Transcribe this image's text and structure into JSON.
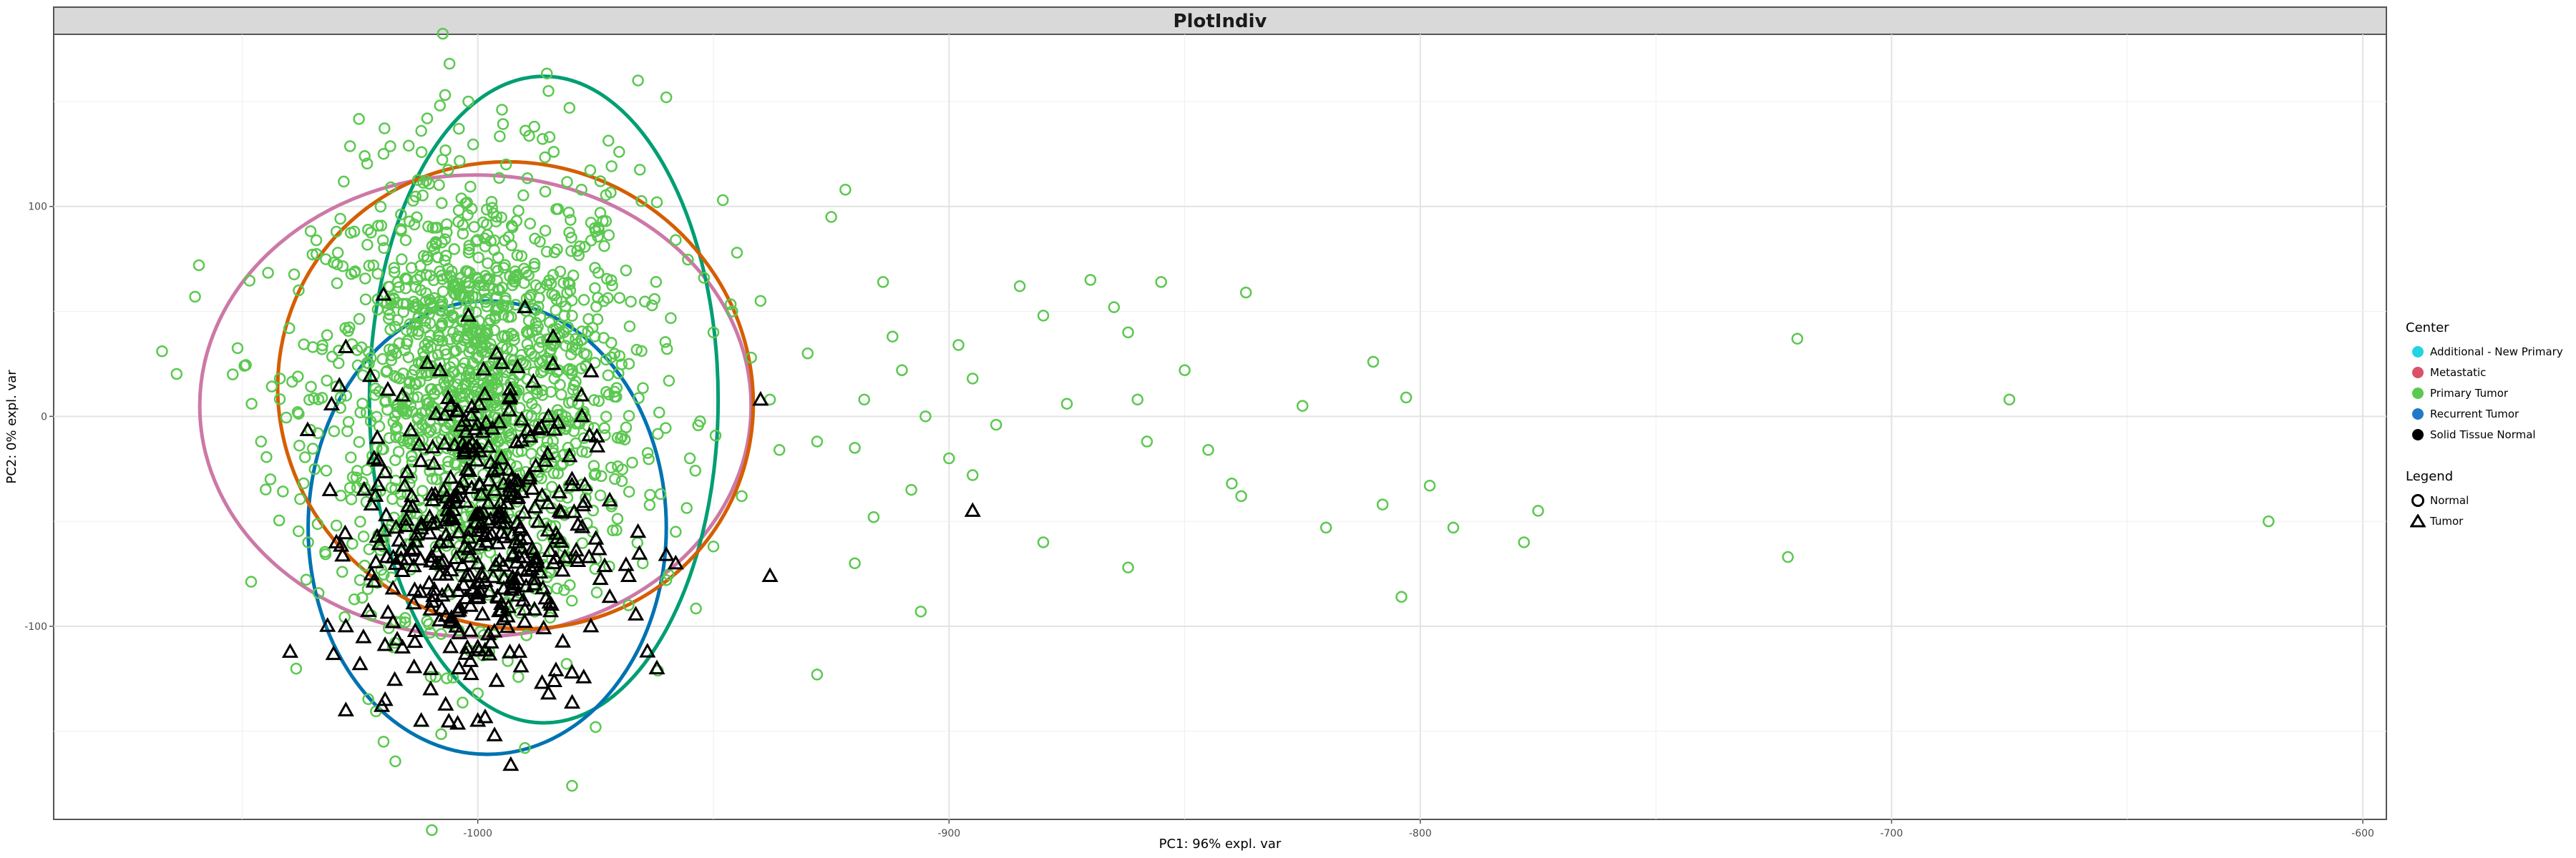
{
  "chart_data": {
    "type": "scatter",
    "title": "PlotIndiv",
    "xlabel": "PC1: 96% expl. var",
    "ylabel": "PC2: 0% expl. var",
    "xlim": [
      -1090,
      -595
    ],
    "ylim": [
      -192,
      182
    ],
    "x_ticks": [
      -1000,
      -900,
      -800,
      -700,
      -600
    ],
    "x_tick_labels": [
      "-1000",
      "-900",
      "-800",
      "-700",
      "-600"
    ],
    "y_ticks": [
      -100,
      0,
      100
    ],
    "y_tick_labels": [
      "-100",
      "0",
      "100"
    ],
    "grid": true,
    "legend_position": "right",
    "color_legend": {
      "title": "Center",
      "entries": [
        {
          "label": "Additional - New Primary",
          "color": "#22d3e0"
        },
        {
          "label": "Metastatic",
          "color": "#d95267"
        },
        {
          "label": "Primary Tumor",
          "color": "#5bc850"
        },
        {
          "label": "Recurrent Tumor",
          "color": "#2079c7"
        },
        {
          "label": "Solid Tissue Normal",
          "color": "#000000"
        }
      ]
    },
    "shape_legend": {
      "title": "Legend",
      "entries": [
        {
          "label": "Normal",
          "shape": "circle"
        },
        {
          "label": "Tumor",
          "shape": "triangle"
        }
      ]
    },
    "ellipses": [
      {
        "group": "Metastatic",
        "color": "#cc79a7",
        "cx": -1000.5,
        "cy": 5,
        "rx": 58.5,
        "ry": 110
      },
      {
        "group": "Primary Tumor",
        "color": "#009e73",
        "cx": -986,
        "cy": 8,
        "rx": 37,
        "ry": 154
      },
      {
        "group": "Recurrent Tumor",
        "color": "#0072b2",
        "cx": -998,
        "cy": -53,
        "rx": 38,
        "ry": 108
      },
      {
        "group": "Additional - New Primary",
        "color": "#d55e00",
        "cx": -992,
        "cy": 10,
        "rx": 51,
        "ry": 110,
        "angle": 32
      }
    ],
    "series": [
      {
        "name": "Primary Tumor",
        "shape": "circle",
        "color": "#5bc850",
        "points": [
          [
            -1067,
            31
          ],
          [
            -1060,
            57
          ],
          [
            -1052,
            20
          ],
          [
            -1042,
            18
          ],
          [
            -1038,
            60
          ],
          [
            -1035,
            33
          ],
          [
            -1046,
            -12
          ],
          [
            -1030,
            -52
          ],
          [
            -1025,
            -78
          ],
          [
            -1018,
            -110
          ],
          [
            -1010,
            -124
          ],
          [
            -1020,
            -155
          ],
          [
            -1000,
            -132
          ],
          [
            -990,
            -158
          ],
          [
            -980,
            -176
          ],
          [
            -975,
            -148
          ],
          [
            -968,
            -90
          ],
          [
            -965,
            -70
          ],
          [
            -958,
            -55
          ],
          [
            -955,
            -20
          ],
          [
            -950,
            40
          ],
          [
            -945,
            78
          ],
          [
            -940,
            55
          ],
          [
            -948,
            103
          ],
          [
            -930,
            30
          ],
          [
            -928,
            -12
          ],
          [
            -925,
            95
          ],
          [
            -922,
            108
          ],
          [
            -928,
            -123
          ],
          [
            -920,
            -70
          ],
          [
            -914,
            64
          ],
          [
            -912,
            38
          ],
          [
            -910,
            22
          ],
          [
            -905,
            0
          ],
          [
            -906,
            -93
          ],
          [
            -898,
            34
          ],
          [
            -895,
            18
          ],
          [
            -890,
            -4
          ],
          [
            -885,
            62
          ],
          [
            -880,
            48
          ],
          [
            -875,
            6
          ],
          [
            -870,
            65
          ],
          [
            -865,
            52
          ],
          [
            -862,
            40
          ],
          [
            -860,
            8
          ],
          [
            -858,
            -12
          ],
          [
            -855,
            64
          ],
          [
            -850,
            22
          ],
          [
            -845,
            -16
          ],
          [
            -862,
            -72
          ],
          [
            -880,
            -60
          ],
          [
            -895,
            -28
          ],
          [
            -908,
            -35
          ],
          [
            -900,
            -20
          ],
          [
            -916,
            -48
          ],
          [
            -918,
            8
          ],
          [
            -920,
            -15
          ],
          [
            -837,
            59
          ],
          [
            -840,
            -32
          ],
          [
            -838,
            -38
          ],
          [
            -825,
            5
          ],
          [
            -820,
            -53
          ],
          [
            -810,
            26
          ],
          [
            -808,
            -42
          ],
          [
            -803,
            9
          ],
          [
            -798,
            -33
          ],
          [
            -793,
            -53
          ],
          [
            -778,
            -60
          ],
          [
            -775,
            -45
          ],
          [
            -804,
            -86
          ],
          [
            -720,
            37
          ],
          [
            -675,
            8
          ],
          [
            -722,
            -67
          ],
          [
            -620,
            -50
          ],
          [
            -1012,
            136
          ],
          [
            -1002,
            150
          ],
          [
            -994,
            120
          ],
          [
            -985,
            155
          ],
          [
            -978,
            108
          ],
          [
            -970,
            126
          ],
          [
            -966,
            160
          ],
          [
            -960,
            152
          ],
          [
            -1024,
            124
          ],
          [
            -1030,
            88
          ],
          [
            -1006,
            168
          ],
          [
            -988,
            138
          ],
          [
            -974,
            112
          ],
          [
            -962,
            102
          ],
          [
            -958,
            84
          ],
          [
            -952,
            66
          ],
          [
            -946,
            50
          ],
          [
            -942,
            28
          ],
          [
            -938,
            8
          ],
          [
            -936,
            -16
          ],
          [
            -944,
            -38
          ],
          [
            -950,
            -62
          ],
          [
            -960,
            -78
          ],
          [
            -1040,
            42
          ],
          [
            -1044,
            -30
          ],
          [
            -1036,
            -60
          ],
          [
            -1048,
            6
          ]
        ]
      },
      {
        "name": "Solid Tissue Normal",
        "shape": "triangle",
        "color": "#000000",
        "points": [
          [
            -1028,
            33
          ],
          [
            -1030,
            -60
          ],
          [
            -1028,
            -100
          ],
          [
            -1025,
            -118
          ],
          [
            -1028,
            -140
          ],
          [
            -1018,
            -98
          ],
          [
            -1012,
            -145
          ],
          [
            -1008,
            -60
          ],
          [
            -1004,
            -120
          ],
          [
            -1000,
            -110
          ],
          [
            -996,
            -126
          ],
          [
            -992,
            -60
          ],
          [
            -993,
            -166
          ],
          [
            -988,
            -80
          ],
          [
            -985,
            -132
          ],
          [
            -980,
            -122
          ],
          [
            -976,
            -100
          ],
          [
            -972,
            -86
          ],
          [
            -968,
            -76
          ],
          [
            -964,
            -112
          ],
          [
            -962,
            -120
          ],
          [
            -960,
            -66
          ],
          [
            -958,
            -70
          ],
          [
            -940,
            8
          ],
          [
            -938,
            -76
          ],
          [
            -895,
            -45
          ],
          [
            -1000,
            -145
          ],
          [
            -1010,
            -130
          ],
          [
            -1018,
            -82
          ],
          [
            -1005,
            -38
          ],
          [
            -995,
            -20
          ],
          [
            -985,
            0
          ],
          [
            -978,
            10
          ],
          [
            -972,
            -40
          ],
          [
            -966,
            -55
          ],
          [
            -1002,
            48
          ],
          [
            -996,
            30
          ],
          [
            -990,
            52
          ],
          [
            -984,
            38
          ],
          [
            -1016,
            10
          ],
          [
            -1022,
            -20
          ],
          [
            -1014,
            -38
          ],
          [
            -1008,
            22
          ],
          [
            -1020,
            58
          ],
          [
            -980,
            -30
          ],
          [
            -1000,
            -70
          ],
          [
            -990,
            -92
          ],
          [
            -1010,
            -92
          ],
          [
            -1015,
            -68
          ],
          [
            -998,
            -56
          ]
        ]
      }
    ]
  }
}
